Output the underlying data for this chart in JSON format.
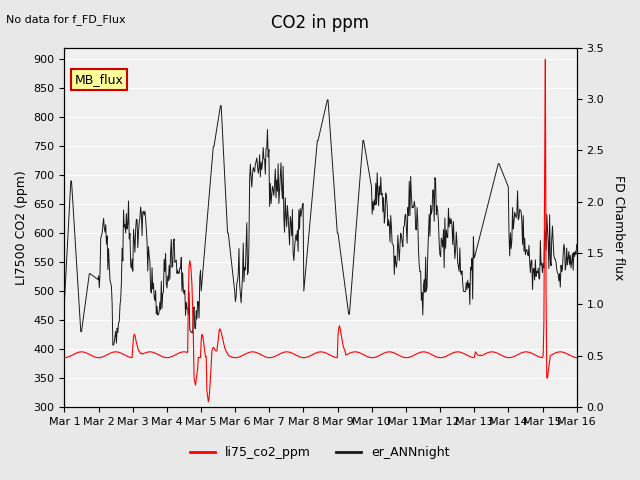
{
  "title": "CO2 in ppm",
  "top_left_text": "No data for f_FD_Flux",
  "ylabel_left": "LI7500 CO2 (ppm)",
  "ylabel_right": "FD Chamber flux",
  "ylim_left": [
    300,
    920
  ],
  "ylim_right": [
    0.0,
    3.5
  ],
  "yticks_left": [
    300,
    350,
    400,
    450,
    500,
    550,
    600,
    650,
    700,
    750,
    800,
    850,
    900
  ],
  "yticks_right": [
    0.0,
    0.5,
    1.0,
    1.5,
    2.0,
    2.5,
    3.0,
    3.5
  ],
  "xtick_labels": [
    "Mar 1",
    "Mar 2",
    "Mar 3",
    "Mar 4",
    "Mar 5",
    "Mar 6",
    "Mar 7",
    "Mar 8",
    "Mar 9",
    "Mar 10",
    "Mar 11",
    "Mar 12",
    "Mar 13",
    "Mar 14",
    "Mar 15",
    "Mar 16"
  ],
  "background_color": "#e8e8e8",
  "plot_bg_color": "#f0f0f0",
  "legend_entries": [
    "li75_co2_ppm",
    "er_ANNnight"
  ],
  "legend_colors": [
    "#ff0000",
    "#1a1a1a"
  ],
  "mb_flux_box_color": "#ffff99",
  "mb_flux_border_color": "#cc0000",
  "grid_color": "#ffffff",
  "line_co2_color": "#ff0000",
  "line_ann_color": "#1a1a1a"
}
